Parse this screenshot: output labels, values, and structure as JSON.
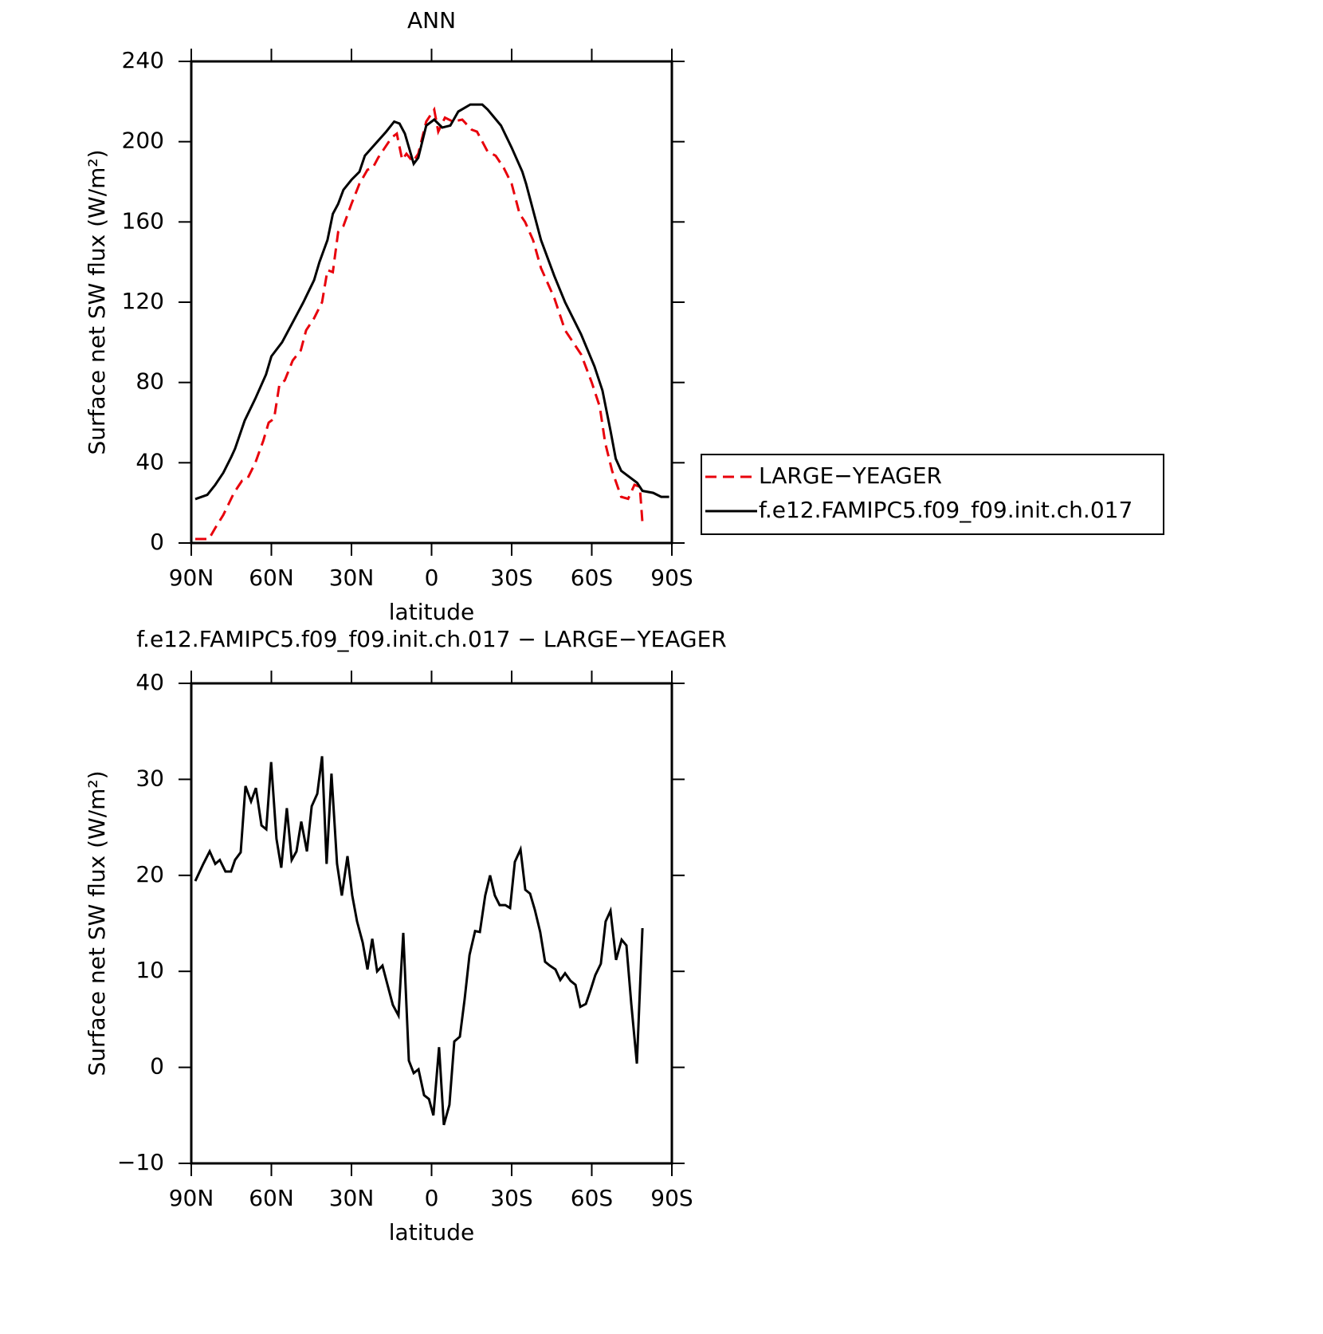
{
  "chart_data": [
    {
      "type": "line",
      "title": "ANN",
      "xlabel": "latitude",
      "ylabel": "Surface net SW flux (W/m²)",
      "xlim": [
        90,
        -90
      ],
      "xticks": [
        {
          "value": 90,
          "label": "90N"
        },
        {
          "value": 60,
          "label": "60N"
        },
        {
          "value": 30,
          "label": "30N"
        },
        0,
        {
          "value": -30,
          "label": "30S"
        },
        {
          "value": -60,
          "label": "60S"
        },
        {
          "value": -90,
          "label": "90S"
        }
      ],
      "ylim": [
        0,
        240
      ],
      "yticks": [
        0,
        40,
        80,
        120,
        160,
        200,
        240
      ],
      "legend": "right",
      "series": [
        {
          "name": "LARGE−YEAGER",
          "color": "#e8000b",
          "dash": true,
          "x": [
            88.5,
            83.4,
            81,
            78,
            74,
            71,
            69,
            66,
            63,
            61,
            59,
            57,
            55,
            52,
            49,
            47,
            44,
            41,
            39,
            37,
            35,
            33,
            30,
            27,
            24,
            22,
            20,
            15,
            13,
            11,
            9.4,
            7,
            5,
            2,
            -1,
            -2.5,
            -5,
            -8,
            -11.5,
            -15,
            -17,
            -21,
            -24,
            -27,
            -30,
            -33,
            -35,
            -38,
            -41,
            -46,
            -50,
            -56,
            -60,
            -63,
            -65,
            -67.6,
            -71,
            -73.6,
            -76,
            -78,
            -79
          ],
          "values": [
            2,
            2,
            7.5,
            14,
            25,
            31,
            32,
            40,
            51,
            60,
            62,
            79,
            81,
            91,
            96,
            106,
            112,
            120,
            136,
            135,
            155,
            158,
            169,
            179,
            186,
            187,
            192,
            202,
            204,
            191,
            194,
            190,
            194,
            210,
            216,
            205,
            212,
            210,
            211,
            206,
            205,
            195,
            193,
            187,
            179,
            164,
            160,
            151,
            137,
            122,
            106,
            94,
            80,
            68,
            50,
            36,
            23,
            22,
            29,
            28,
            10
          ]
        },
        {
          "name": "f.e12.FAMIPC5.f09_f09.init.ch.017",
          "color": "#000000",
          "dash": false,
          "x": [
            88.5,
            84,
            81,
            78,
            75,
            73.6,
            70,
            66,
            62,
            60,
            56,
            52,
            48,
            44,
            42,
            39,
            37,
            35,
            33,
            30,
            27,
            25,
            21,
            17,
            14,
            12,
            10,
            6.7,
            5,
            2,
            -1,
            -4,
            -7,
            -10,
            -14.5,
            -19,
            -21,
            -26,
            -30,
            -34,
            -35.4,
            -41,
            -46,
            -50,
            -56,
            -61,
            -64,
            -67,
            -69,
            -71,
            -77,
            -79,
            -83,
            -86,
            -89
          ],
          "values": [
            21.9,
            24,
            29,
            35,
            43,
            47,
            61,
            72,
            84,
            93,
            100,
            110,
            120,
            131,
            140,
            151,
            164,
            169,
            176,
            181,
            185,
            193,
            199,
            205,
            210,
            209,
            204,
            189,
            192,
            208,
            211,
            207,
            208,
            215,
            218.5,
            218.5,
            216,
            208,
            197,
            185,
            179,
            151,
            133,
            120,
            104,
            88,
            76,
            56,
            42,
            36,
            30,
            26,
            25,
            23,
            23
          ]
        }
      ]
    },
    {
      "type": "line",
      "title": "f.e12.FAMIPC5.f09_f09.init.ch.017 − LARGE−YEAGER",
      "xlabel": "latitude",
      "ylabel": "Surface net SW flux (W/m²)",
      "xlim": [
        90,
        -90
      ],
      "xticks": [
        {
          "value": 90,
          "label": "90N"
        },
        {
          "value": 60,
          "label": "60N"
        },
        {
          "value": 30,
          "label": "30N"
        },
        0,
        {
          "value": -30,
          "label": "30S"
        },
        {
          "value": -60,
          "label": "60S"
        },
        {
          "value": -90,
          "label": "90S"
        }
      ],
      "ylim": [
        -10,
        40
      ],
      "yticks": [
        {
          "value": -10,
          "label": "−10"
        },
        0,
        10,
        20,
        30,
        40
      ],
      "series": [
        {
          "color": "#000000",
          "dash": false,
          "x": [
            88.5,
            85.5,
            83.1,
            81,
            79.3,
            77.2,
            75.1,
            73.6,
            71.5,
            69.7,
            67.6,
            65.8,
            63.7,
            61.9,
            60.1,
            58.1,
            56.3,
            54.2,
            52.4,
            50.6,
            48.8,
            46.7,
            44.9,
            42.8,
            41,
            39.3,
            37.5,
            35.4,
            33.6,
            31.5,
            29.7,
            27.9,
            25.8,
            24,
            22.2,
            20.4,
            18.4,
            16.6,
            14.5,
            12.4,
            10.6,
            8.5,
            6.7,
            4.9,
            2.8,
            1,
            -0.7,
            -2.8,
            -4.6,
            -6.7,
            -8.5,
            -10.6,
            -12.4,
            -14.2,
            -16.3,
            -18.1,
            -20.1,
            -21.9,
            -23.7,
            -25.5,
            -27.6,
            -29.4,
            -31.2,
            -33.3,
            -35.1,
            -36.9,
            -38.7,
            -40.7,
            -42.5,
            -44.3,
            -46.4,
            -48.2,
            -50,
            -52.1,
            -53.9,
            -55.7,
            -57.8,
            -59.6,
            -61.3,
            -63.4,
            -65.2,
            -67,
            -69.1,
            -71.2,
            -73,
            -74.8,
            -76.9,
            -79
          ],
          "values": [
            19.4,
            21.2,
            22.5,
            21.2,
            21.6,
            20.4,
            20.4,
            21.6,
            22.4,
            29.3,
            27.7,
            29.1,
            25.2,
            24.8,
            31.8,
            23.8,
            20.8,
            27,
            21.6,
            22.5,
            25.6,
            22.5,
            27.2,
            28.5,
            32.4,
            21.2,
            30.6,
            21.2,
            17.9,
            22,
            17.9,
            15.2,
            13,
            10.2,
            13.4,
            10,
            10.6,
            8.7,
            6.5,
            5.4,
            14,
            0.7,
            -0.6,
            -0.2,
            -2.9,
            -3.3,
            -5,
            2.1,
            -6,
            -3.9,
            2.7,
            3.2,
            7.1,
            11.7,
            14.2,
            14.1,
            17.9,
            20,
            17.9,
            16.9,
            16.9,
            16.6,
            21.4,
            22.7,
            18.5,
            18.1,
            16.4,
            14.1,
            11,
            10.6,
            10.2,
            9.1,
            9.8,
            9,
            8.6,
            6.3,
            6.6,
            8.1,
            9.6,
            10.8,
            15.2,
            16.3,
            11.2,
            13.3,
            12.7,
            6.6,
            0.4,
            14.5
          ]
        }
      ]
    }
  ]
}
